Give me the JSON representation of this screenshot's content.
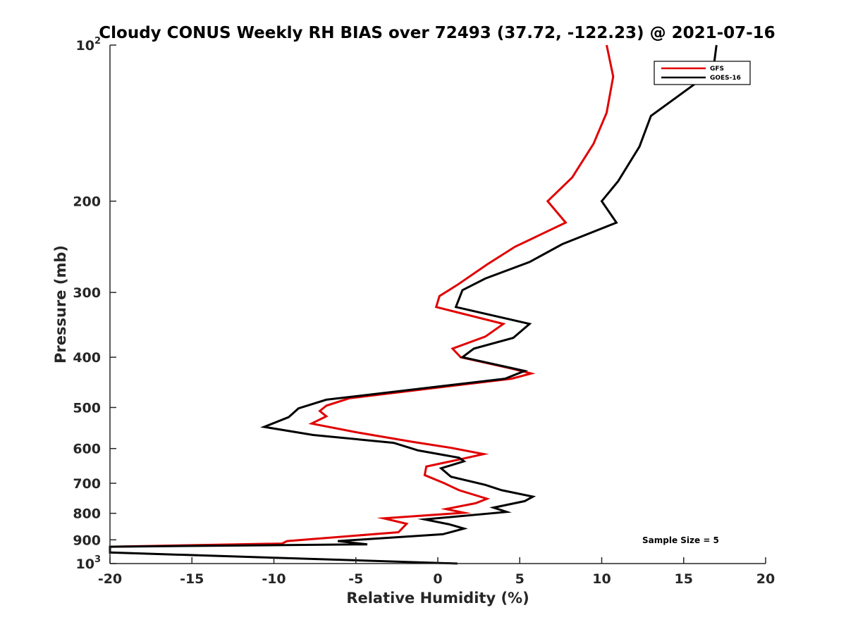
{
  "chart_data": {
    "type": "line",
    "title": "Cloudy CONUS Weekly RH BIAS over 72493 (37.72, -122.23) @ 2021-07-16",
    "xlabel": "Relative Humidity (%)",
    "ylabel": "Pressure (mb)",
    "xlim": [
      -20,
      20
    ],
    "ylim": [
      100,
      1000
    ],
    "y_scale": "log",
    "y_reversed": true,
    "x_ticks": [
      "-20",
      "-15",
      "-10",
      "-5",
      "0",
      "5",
      "10",
      "15",
      "20"
    ],
    "y_ticks": [
      {
        "value": 100,
        "base": "10",
        "exp": "2"
      },
      {
        "value": 200,
        "label": "200"
      },
      {
        "value": 300,
        "label": "300"
      },
      {
        "value": 400,
        "label": "400"
      },
      {
        "value": 500,
        "label": "500"
      },
      {
        "value": 600,
        "label": "600"
      },
      {
        "value": 700,
        "label": "700"
      },
      {
        "value": 800,
        "label": "800"
      },
      {
        "value": 900,
        "label": "900"
      },
      {
        "value": 1000,
        "base": "10",
        "exp": "3"
      }
    ],
    "legend_position": "top-right",
    "annotation": "Sample Size = 5",
    "series": [
      {
        "name": "GFS",
        "color": "#e00000",
        "points": [
          [
            10.3,
            100
          ],
          [
            10.7,
            115
          ],
          [
            10.3,
            135
          ],
          [
            9.5,
            155
          ],
          [
            8.2,
            180
          ],
          [
            6.7,
            200
          ],
          [
            7.8,
            220
          ],
          [
            4.7,
            245
          ],
          [
            3.0,
            265
          ],
          [
            1.2,
            290
          ],
          [
            0.1,
            305
          ],
          [
            -0.1,
            320
          ],
          [
            4.0,
            345
          ],
          [
            2.9,
            365
          ],
          [
            0.9,
            385
          ],
          [
            1.4,
            400
          ],
          [
            4.4,
            420
          ],
          [
            5.7,
            430
          ],
          [
            4.5,
            440
          ],
          [
            -5.4,
            480
          ],
          [
            -6.8,
            496
          ],
          [
            -7.2,
            508
          ],
          [
            -6.8,
            520
          ],
          [
            -7.7,
            537
          ],
          [
            -5.0,
            558
          ],
          [
            -1.6,
            582
          ],
          [
            0.8,
            598
          ],
          [
            2.8,
            615
          ],
          [
            1.3,
            630
          ],
          [
            -0.7,
            650
          ],
          [
            -0.8,
            675
          ],
          [
            0.4,
            700
          ],
          [
            1.3,
            722
          ],
          [
            3.0,
            750
          ],
          [
            2.3,
            765
          ],
          [
            0.5,
            785
          ],
          [
            1.6,
            798
          ],
          [
            -3.3,
            818
          ],
          [
            -1.9,
            838
          ],
          [
            -2.4,
            870
          ],
          [
            -9.2,
            905
          ],
          [
            -9.5,
            915
          ],
          [
            -20.0,
            928
          ]
        ]
      },
      {
        "name": "GOES-16",
        "color": "#000000",
        "points": [
          [
            17.0,
            100
          ],
          [
            16.8,
            112
          ],
          [
            13.0,
            137
          ],
          [
            12.3,
            157
          ],
          [
            11.0,
            183
          ],
          [
            10.0,
            200
          ],
          [
            10.9,
            220
          ],
          [
            7.6,
            242
          ],
          [
            5.6,
            262
          ],
          [
            2.9,
            282
          ],
          [
            1.5,
            297
          ],
          [
            1.1,
            320
          ],
          [
            5.6,
            345
          ],
          [
            4.6,
            367
          ],
          [
            2.2,
            385
          ],
          [
            1.5,
            400
          ],
          [
            5.3,
            425
          ],
          [
            4.1,
            440
          ],
          [
            -6.8,
            483
          ],
          [
            -8.5,
            502
          ],
          [
            -9.1,
            522
          ],
          [
            -10.6,
            545
          ],
          [
            -7.6,
            565
          ],
          [
            -2.7,
            585
          ],
          [
            -1.2,
            605
          ],
          [
            1.3,
            625
          ],
          [
            1.6,
            635
          ],
          [
            0.2,
            655
          ],
          [
            0.8,
            680
          ],
          [
            2.9,
            705
          ],
          [
            3.9,
            722
          ],
          [
            5.8,
            743
          ],
          [
            5.3,
            758
          ],
          [
            3.4,
            780
          ],
          [
            4.2,
            795
          ],
          [
            -0.8,
            822
          ],
          [
            0.7,
            840
          ],
          [
            1.6,
            856
          ],
          [
            0.3,
            878
          ],
          [
            -6.1,
            905
          ],
          [
            -4.3,
            918
          ],
          [
            -20.0,
            928
          ],
          [
            -20.0,
            952
          ],
          [
            1.2,
            1000
          ]
        ]
      }
    ]
  }
}
